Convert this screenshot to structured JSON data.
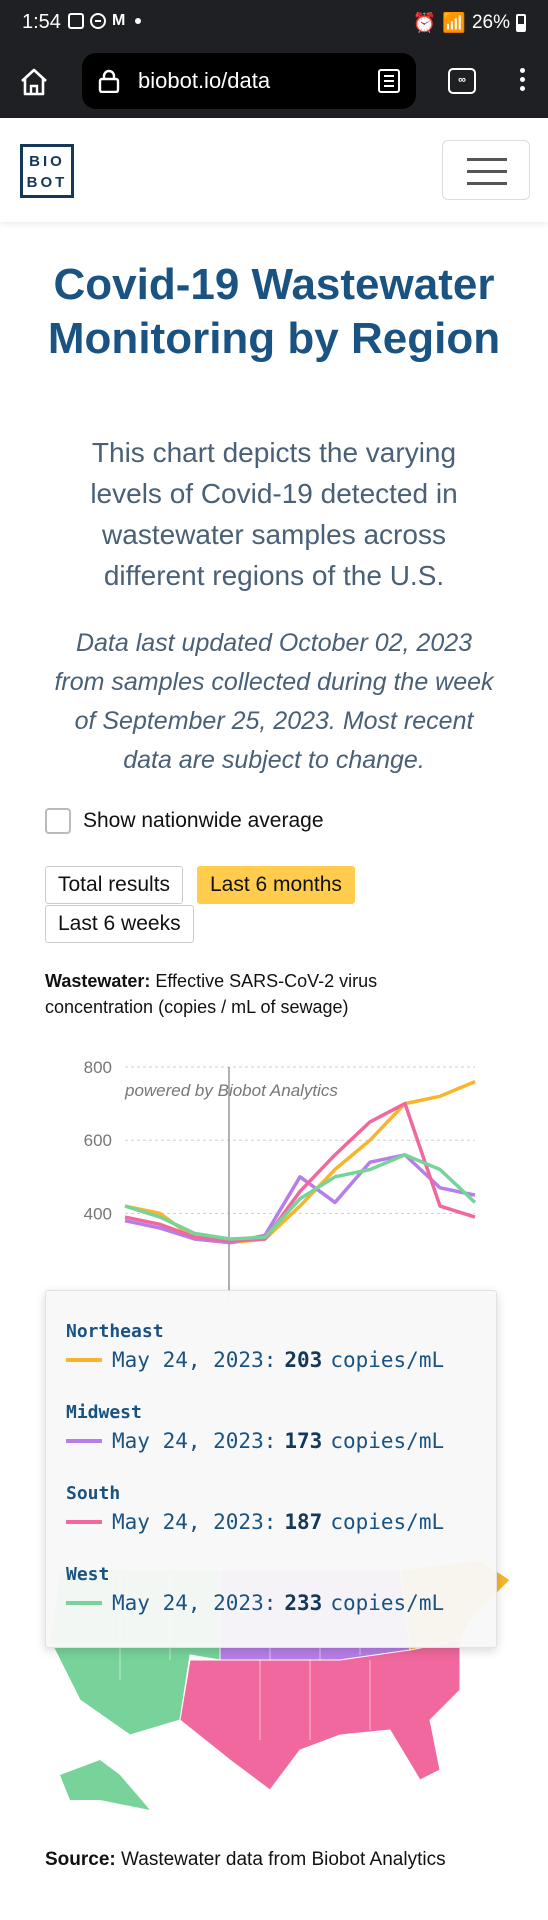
{
  "status_bar": {
    "time": "1:54",
    "battery": "26%"
  },
  "browser": {
    "url": "biobot.io/data",
    "tabs_icon": "infinity-icon"
  },
  "header": {
    "logo_line1": "BIO",
    "logo_line2": "BOT"
  },
  "title": "Covid-19 Wastewater Monitoring by Region",
  "description": "This chart depicts the varying levels of Covid-19 detected in wastewater samples across different regions of the U.S.",
  "updated_note": "Data last updated October 02, 2023 from samples collected during the week of September 25, 2023. Most recent data are subject to change.",
  "checkbox_label": "Show nationwide average",
  "range_buttons": {
    "total": "Total results",
    "six_months": "Last 6 months",
    "six_weeks": "Last 6 weeks"
  },
  "chart_label": {
    "bold": "Wastewater:",
    "text": " Effective SARS-CoV-2 virus concentration (copies / mL of sewage)"
  },
  "colors": {
    "northeast": "#f6b52b",
    "midwest": "#b67ee8",
    "south": "#f0689d",
    "west": "#77d39a",
    "title_blue": "#1a5381"
  },
  "chart_data": {
    "type": "line",
    "watermark": "powered by Biobot Analytics",
    "ylim": [
      300,
      800
    ],
    "yticks": [
      800,
      600,
      400
    ],
    "x": [
      0,
      1,
      2,
      3,
      4,
      5,
      6,
      7,
      8,
      9,
      10
    ],
    "series": [
      {
        "name": "Northeast",
        "values": [
          420,
          400,
          330,
          320,
          330,
          420,
          520,
          600,
          700,
          720,
          760
        ]
      },
      {
        "name": "Midwest",
        "values": [
          380,
          360,
          330,
          320,
          340,
          500,
          430,
          540,
          560,
          470,
          450
        ]
      },
      {
        "name": "South",
        "values": [
          390,
          370,
          335,
          325,
          330,
          460,
          560,
          650,
          700,
          420,
          390
        ]
      },
      {
        "name": "West",
        "values": [
          420,
          390,
          345,
          330,
          335,
          440,
          500,
          520,
          560,
          520,
          430
        ]
      }
    ]
  },
  "tooltip": {
    "entries": [
      {
        "region": "Northeast",
        "date": "May 24, 2023:",
        "value": "203",
        "unit": "copies/mL"
      },
      {
        "region": "Midwest",
        "date": "May 24, 2023:",
        "value": "173",
        "unit": "copies/mL"
      },
      {
        "region": "South",
        "date": "May 24, 2023:",
        "value": "187",
        "unit": "copies/mL"
      },
      {
        "region": "West",
        "date": "May 24, 2023:",
        "value": "233",
        "unit": "copies/mL"
      }
    ]
  },
  "source": {
    "bold": "Source:",
    "text": " Wastewater data from Biobot Analytics"
  }
}
